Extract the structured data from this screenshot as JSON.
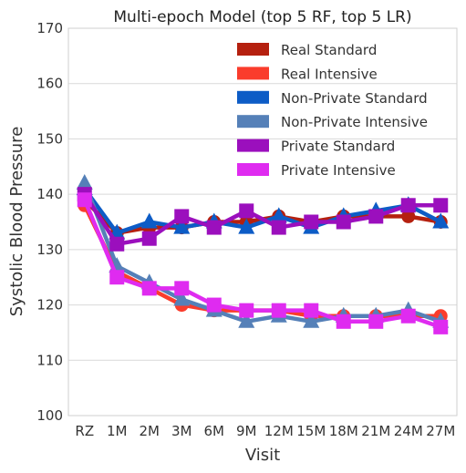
{
  "chart_data": {
    "type": "line",
    "title": "Multi-epoch Model (top 5 RF, top 5 LR)",
    "xlabel": "Visit",
    "ylabel": "Systolic Blood Pressure",
    "ylim": [
      100,
      170
    ],
    "yticks": [
      100,
      110,
      120,
      130,
      140,
      150,
      160,
      170
    ],
    "grid": true,
    "legend_position": "top-right",
    "categories": [
      "RZ",
      "1M",
      "2M",
      "3M",
      "6M",
      "9M",
      "12M",
      "15M",
      "18M",
      "21M",
      "24M",
      "27M"
    ],
    "series": [
      {
        "name": "Real Standard",
        "color": "#b5200f",
        "marker": "circle",
        "values": [
          139,
          133,
          134,
          134,
          135,
          135,
          136,
          135,
          136,
          136,
          136,
          135
        ]
      },
      {
        "name": "Real Intensive",
        "color": "#fa3c2c",
        "marker": "circle",
        "values": [
          138,
          126,
          123,
          120,
          119,
          119,
          119,
          118,
          118,
          118,
          118,
          118
        ]
      },
      {
        "name": "Non-Private Standard",
        "color": "#0d5cc6",
        "marker": "triangle",
        "values": [
          141,
          133,
          135,
          134,
          135,
          134,
          136,
          134,
          136,
          137,
          138,
          135
        ]
      },
      {
        "name": "Non-Private Intensive",
        "color": "#5580b8",
        "marker": "triangle",
        "values": [
          142,
          127,
          124,
          121,
          119,
          117,
          118,
          117,
          118,
          118,
          119,
          117
        ]
      },
      {
        "name": "Private Standard",
        "color": "#9b0fbd",
        "marker": "square",
        "values": [
          140,
          131,
          132,
          136,
          134,
          137,
          134,
          135,
          135,
          136,
          138,
          138
        ]
      },
      {
        "name": "Private Intensive",
        "color": "#df2bf0",
        "marker": "square",
        "values": [
          139,
          125,
          123,
          123,
          120,
          119,
          119,
          119,
          117,
          117,
          118,
          116
        ]
      }
    ]
  }
}
